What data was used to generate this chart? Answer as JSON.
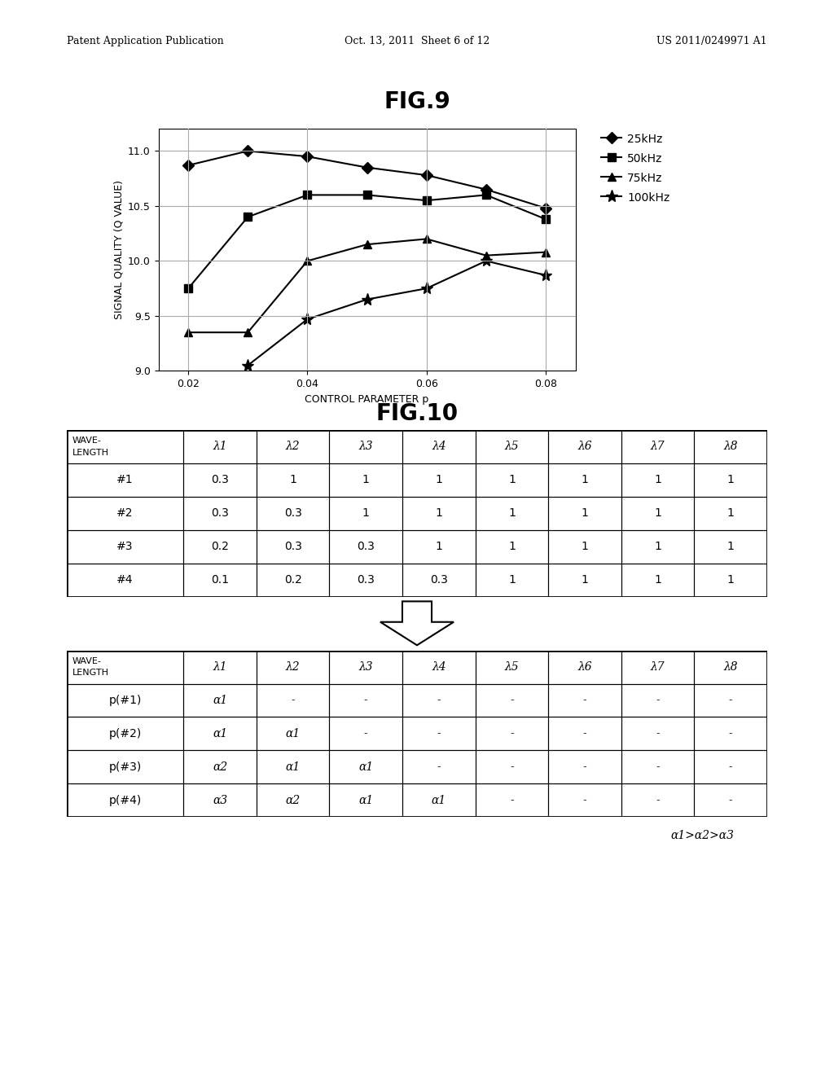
{
  "fig9_title": "FIG.9",
  "fig10_title": "FIG.10",
  "header_left": "Patent Application Publication",
  "header_mid": "Oct. 13, 2011  Sheet 6 of 12",
  "header_right": "US 2011/0249971 A1",
  "x_values": [
    0.02,
    0.03,
    0.04,
    0.05,
    0.06,
    0.07,
    0.08
  ],
  "series_25kHz": [
    10.87,
    11.0,
    10.95,
    10.85,
    10.78,
    10.65,
    10.48
  ],
  "series_50kHz": [
    9.75,
    10.4,
    10.6,
    10.6,
    10.55,
    10.6,
    10.38
  ],
  "series_75kHz": [
    9.35,
    9.35,
    10.0,
    10.15,
    10.2,
    10.05,
    10.08
  ],
  "series_100kHz": [
    null,
    9.05,
    9.47,
    9.65,
    9.75,
    10.0,
    9.87
  ],
  "xlabel": "CONTROL PARAMETER p",
  "ylabel": "SIGNAL QUALITY (Q VALUE)",
  "ylim": [
    9.0,
    11.2
  ],
  "yticks": [
    9.0,
    9.5,
    10.0,
    10.5,
    11.0
  ],
  "xlim": [
    0.015,
    0.085
  ],
  "xticks": [
    0.02,
    0.04,
    0.06,
    0.08
  ],
  "legend_labels": [
    "25kHz",
    "50kHz",
    "75kHz",
    "100kHz"
  ],
  "markers": [
    "D",
    "s",
    "^",
    "*"
  ],
  "table1_header": [
    "WAVE-\nLENGTH",
    "λ1",
    "λ2",
    "λ3",
    "λ4",
    "λ5",
    "λ6",
    "λ7",
    "λ8"
  ],
  "table1_rows": [
    [
      "#1",
      "0.3",
      "1",
      "1",
      "1",
      "1",
      "1",
      "1",
      "1"
    ],
    [
      "#2",
      "0.3",
      "0.3",
      "1",
      "1",
      "1",
      "1",
      "1",
      "1"
    ],
    [
      "#3",
      "0.2",
      "0.3",
      "0.3",
      "1",
      "1",
      "1",
      "1",
      "1"
    ],
    [
      "#4",
      "0.1",
      "0.2",
      "0.3",
      "0.3",
      "1",
      "1",
      "1",
      "1"
    ]
  ],
  "table2_rows": [
    [
      "p(#1)",
      "α1",
      "-",
      "-",
      "-",
      "-",
      "-",
      "-",
      "-"
    ],
    [
      "p(#2)",
      "α1",
      "α1",
      "-",
      "-",
      "-",
      "-",
      "-",
      "-"
    ],
    [
      "p(#3)",
      "α2",
      "α1",
      "α1",
      "-",
      "-",
      "-",
      "-",
      "-"
    ],
    [
      "p(#4)",
      "α3",
      "α2",
      "α1",
      "α1",
      "-",
      "-",
      "-",
      "-"
    ]
  ],
  "table2_note": "α1>α2>α3",
  "bg_color": "#ffffff",
  "text_color": "#000000",
  "grid_color": "#aaaaaa"
}
